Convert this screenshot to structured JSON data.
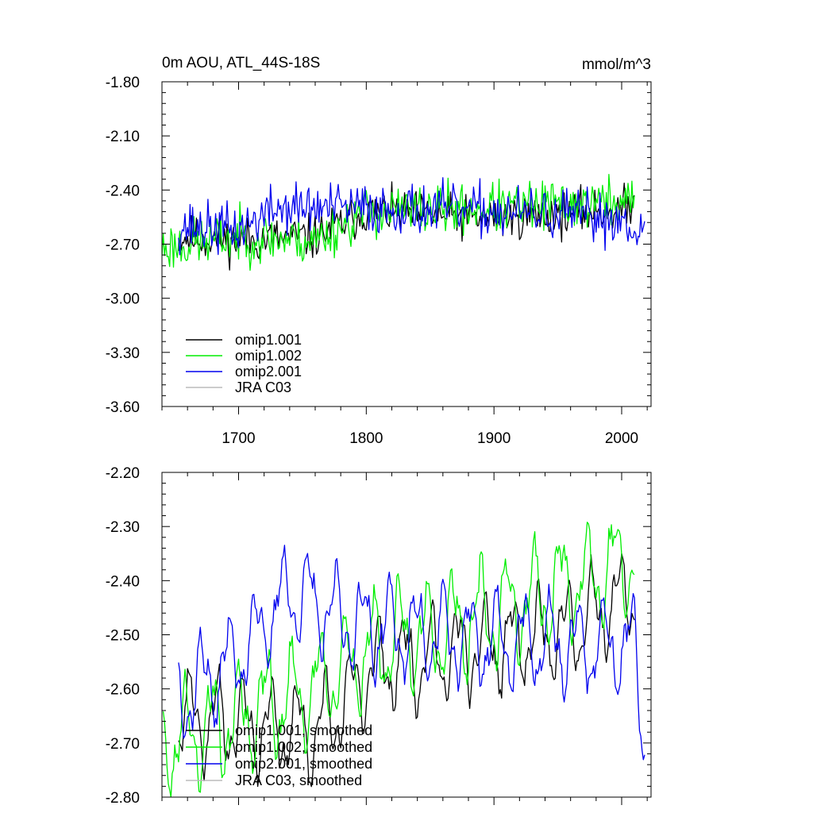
{
  "chart_data": [
    {
      "type": "line",
      "title": "0m AOU, ATL_44S-18S",
      "units": "mmol/m^3",
      "xlim": [
        1640,
        2023
      ],
      "ylim": [
        -3.6,
        -1.8
      ],
      "x_ticks": [
        1700,
        1800,
        1900,
        2000
      ],
      "x_tick_labels": [
        "1700",
        "1800",
        "1900",
        "2000"
      ],
      "y_ticks": [
        -1.8,
        -2.1,
        -2.4,
        -2.7,
        -3.0,
        -3.3,
        -3.6
      ],
      "y_tick_labels": [
        "-1.80",
        "-2.10",
        "-2.40",
        "-2.70",
        "-3.00",
        "-3.30",
        "-3.60"
      ],
      "legend": [
        "omip1.001",
        "omip1.002",
        "omip2.001",
        "JRA C03"
      ],
      "series": [
        {
          "name": "omip1.001",
          "color": "#000000",
          "x_start": 1653,
          "x_end": 2010,
          "pattern": "annual",
          "trend": [
            [
              1653,
              -2.66
            ],
            [
              1700,
              -2.68
            ],
            [
              1760,
              -2.66
            ],
            [
              1800,
              -2.52
            ],
            [
              1900,
              -2.56
            ],
            [
              2010,
              -2.5
            ]
          ],
          "amp": 0.13,
          "seed": 11
        },
        {
          "name": "omip1.002",
          "color": "#00ee00",
          "x_start": 1640,
          "x_end": 2010,
          "pattern": "annual",
          "trend": [
            [
              1640,
              -2.72
            ],
            [
              1700,
              -2.66
            ],
            [
              1760,
              -2.68
            ],
            [
              1800,
              -2.52
            ],
            [
              1900,
              -2.5
            ],
            [
              2010,
              -2.46
            ]
          ],
          "amp": 0.15,
          "seed": 23
        },
        {
          "name": "omip2.001",
          "color": "#0000ee",
          "x_start": 1653,
          "x_end": 2018,
          "pattern": "annual",
          "trend": [
            [
              1653,
              -2.6
            ],
            [
              1700,
              -2.62
            ],
            [
              1730,
              -2.5
            ],
            [
              1800,
              -2.5
            ],
            [
              1900,
              -2.52
            ],
            [
              2000,
              -2.56
            ],
            [
              2018,
              -2.62
            ]
          ],
          "amp": 0.15,
          "seed": 37
        },
        {
          "name": "JRA C03",
          "color": "#bbbbbb",
          "x_start": 1640,
          "x_end": 2010,
          "pattern": "none",
          "trend": [],
          "amp": 0,
          "seed": 0
        }
      ]
    },
    {
      "type": "line",
      "title": "",
      "xlim": [
        1640,
        2023
      ],
      "ylim": [
        -2.8,
        -2.2
      ],
      "x_ticks": [
        1700,
        1800,
        1900,
        2000
      ],
      "x_tick_labels": [],
      "y_ticks": [
        -2.2,
        -2.3,
        -2.4,
        -2.5,
        -2.6,
        -2.7,
        -2.8
      ],
      "y_tick_labels": [
        "-2.20",
        "-2.30",
        "-2.40",
        "-2.50",
        "-2.60",
        "-2.70",
        "-2.80"
      ],
      "legend": [
        "omip1.001, smoothed",
        "omip1.002, smoothed",
        "omip2.001, smoothed",
        "JRA C03, smoothed"
      ],
      "series": [
        {
          "name": "omip1.001, smoothed",
          "color": "#000000",
          "x_start": 1653,
          "x_end": 2010,
          "pattern": "smooth",
          "trend": [
            [
              1653,
              -2.65
            ],
            [
              1760,
              -2.68
            ],
            [
              1807,
              -2.56
            ],
            [
              1900,
              -2.52
            ],
            [
              1950,
              -2.5
            ],
            [
              2010,
              -2.42
            ]
          ],
          "amp": 0.07,
          "seed": 11
        },
        {
          "name": "omip1.002, smoothed",
          "color": "#00ee00",
          "x_start": 1641,
          "x_end": 2010,
          "pattern": "smooth",
          "trend": [
            [
              1641,
              -2.7
            ],
            [
              1690,
              -2.66
            ],
            [
              1760,
              -2.6
            ],
            [
              1807,
              -2.52
            ],
            [
              1900,
              -2.46
            ],
            [
              2010,
              -2.36
            ]
          ],
          "amp": 0.08,
          "seed": 23
        },
        {
          "name": "omip2.001, smoothed",
          "color": "#0000ee",
          "x_start": 1653,
          "x_end": 2018,
          "pattern": "smooth",
          "trend": [
            [
              1653,
              -2.62
            ],
            [
              1700,
              -2.54
            ],
            [
              1740,
              -2.42
            ],
            [
              1790,
              -2.48
            ],
            [
              1850,
              -2.5
            ],
            [
              1960,
              -2.52
            ],
            [
              2010,
              -2.52
            ],
            [
              2018,
              -2.7
            ]
          ],
          "amp": 0.07,
          "seed": 37
        },
        {
          "name": "JRA C03, smoothed",
          "color": "#bbbbbb",
          "x_start": 1640,
          "x_end": 2010,
          "pattern": "none",
          "trend": [],
          "amp": 0,
          "seed": 0
        }
      ]
    }
  ]
}
